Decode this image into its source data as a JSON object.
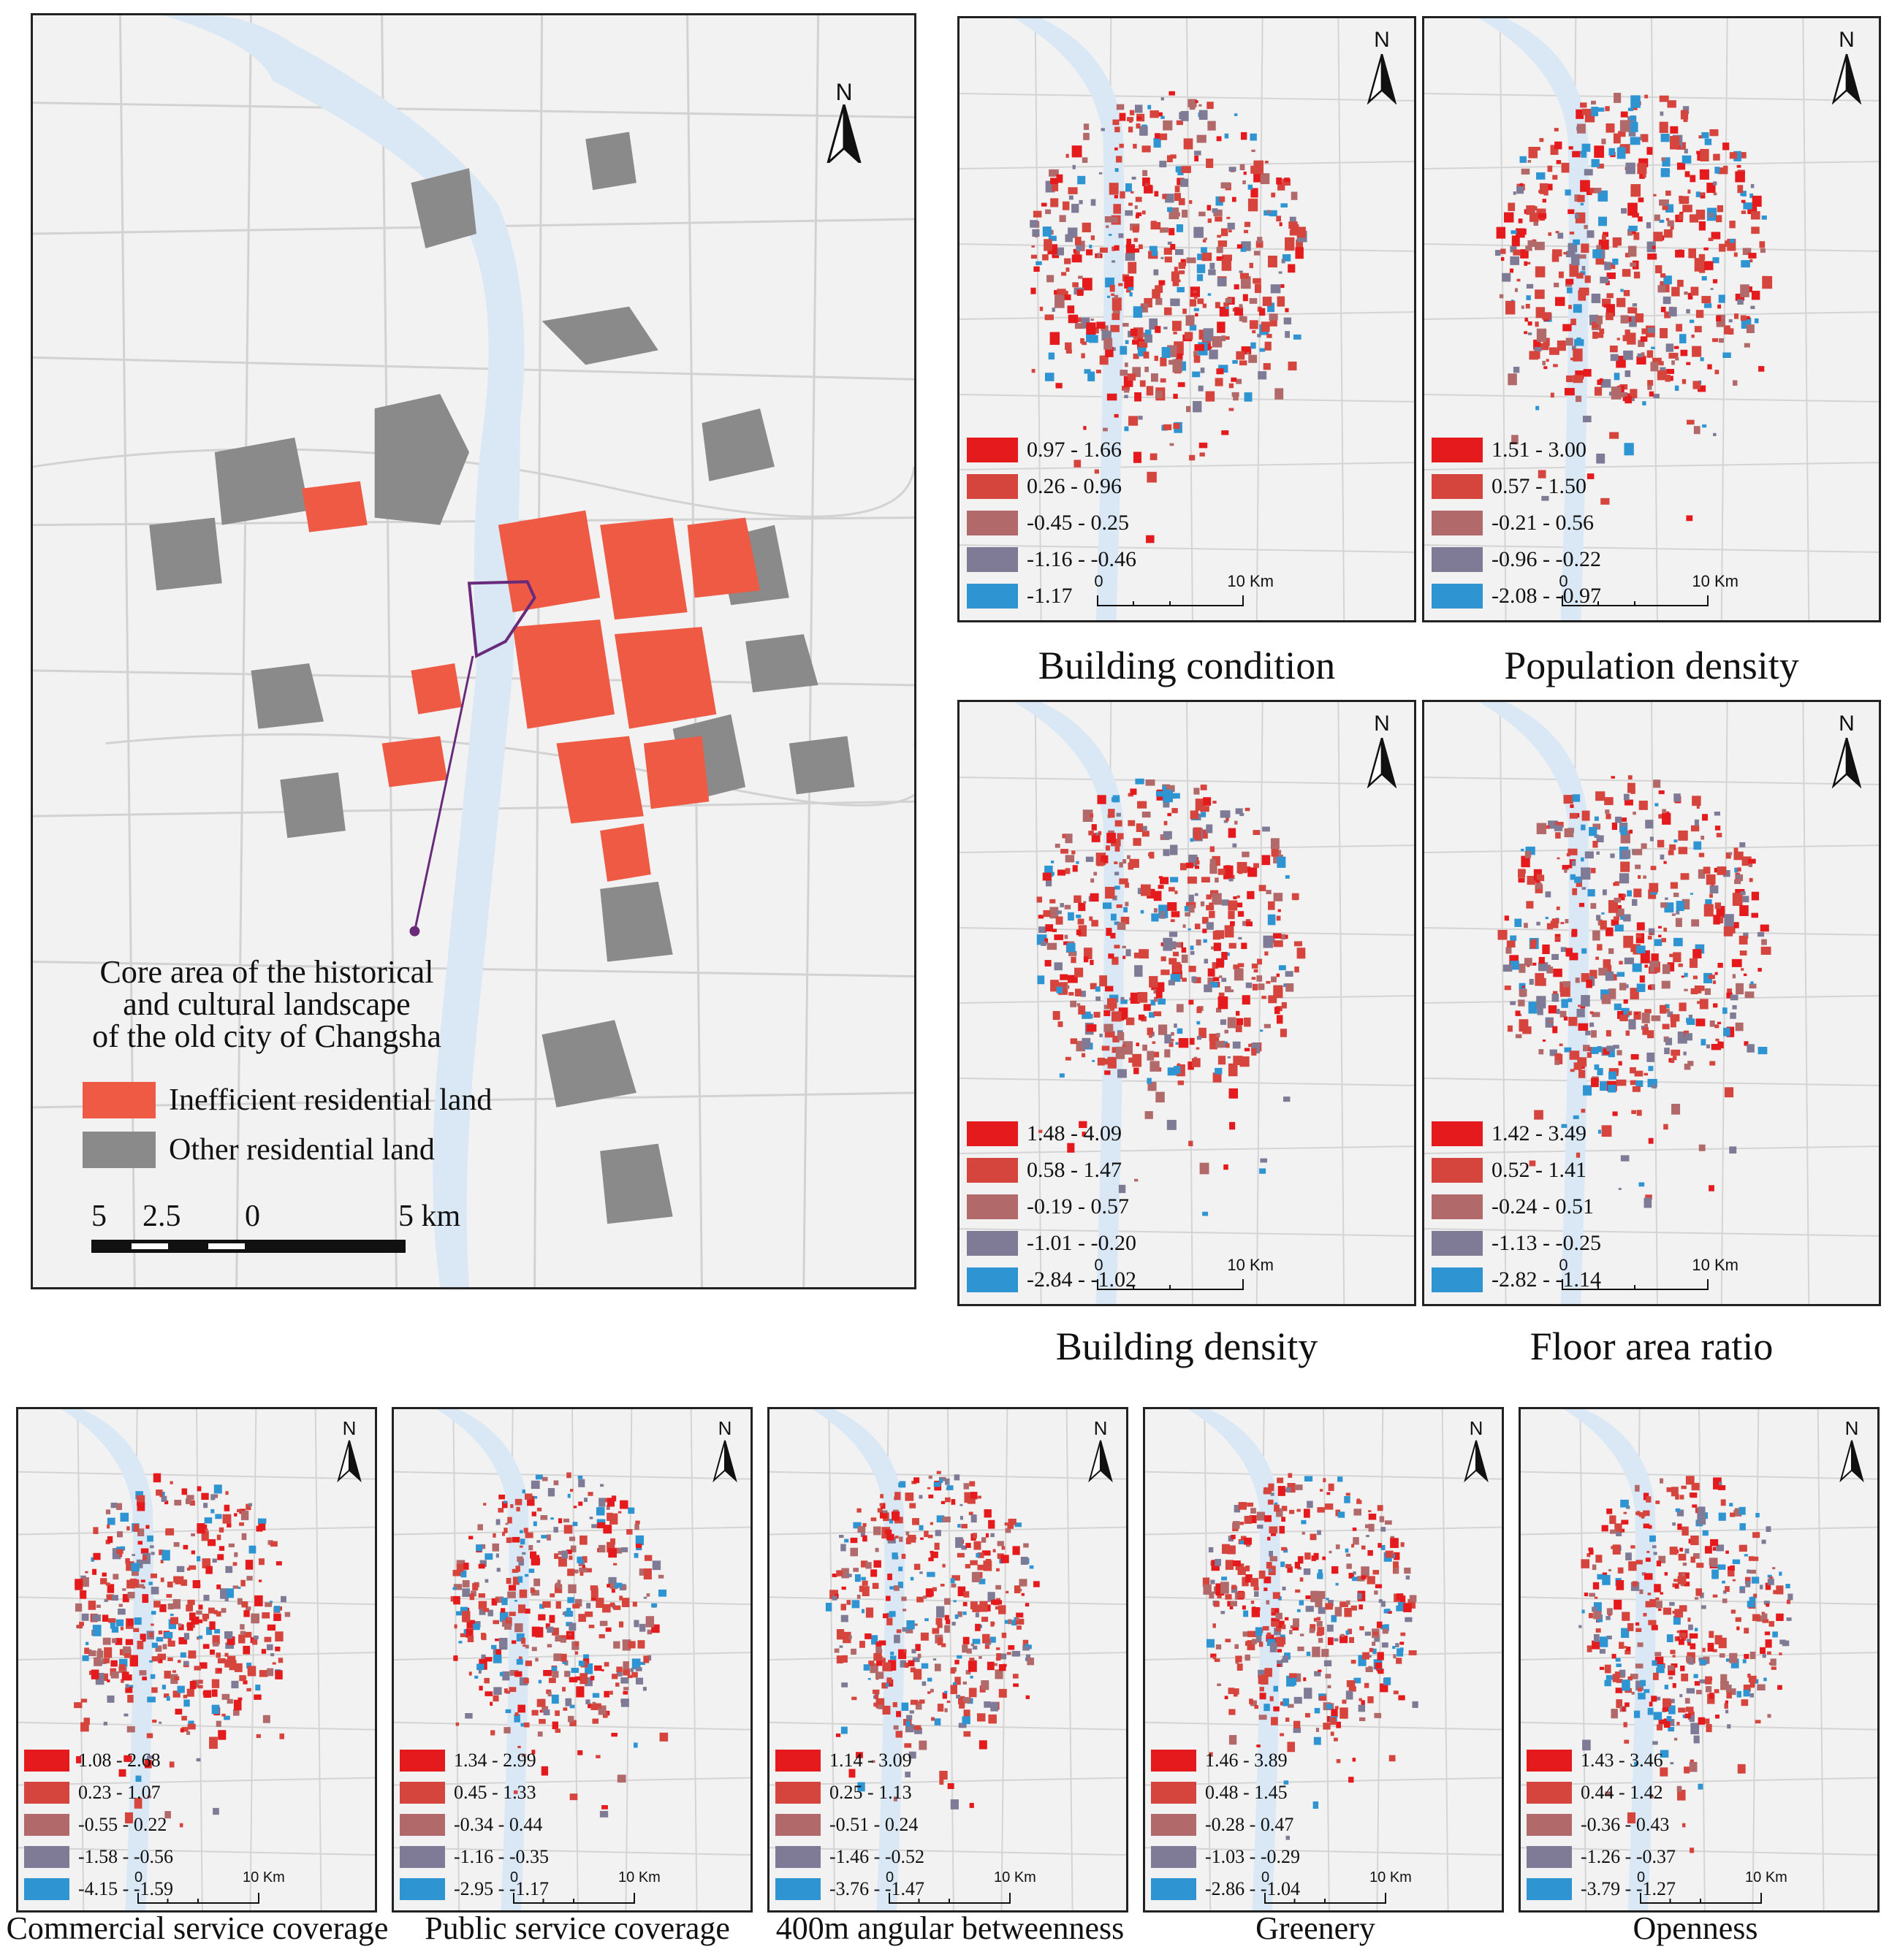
{
  "main_map": {
    "annotation": {
      "line1": "Core area of the historical",
      "line2": "and cultural landscape",
      "line3": "of the old city of Changsha"
    },
    "legend": [
      {
        "label": "Inefficient residential land",
        "color": "#ef5a45"
      },
      {
        "label": "Other residential land",
        "color": "#8a8a8a"
      }
    ],
    "scale": {
      "labels": [
        "5",
        "2.5",
        "0",
        "5 km"
      ]
    },
    "north": "N"
  },
  "small_maps": [
    {
      "title": "Building condition",
      "north": "N",
      "legend": [
        "0.97 - 1.66",
        "0.26 - 0.96",
        "-0.45 - 0.25",
        "-1.16 - -0.46",
        "-1.17"
      ],
      "scale": {
        "start": "0",
        "end": "10 Km"
      }
    },
    {
      "title": "Population density",
      "north": "N",
      "legend": [
        "1.51 - 3.00",
        "0.57 - 1.50",
        "-0.21 - 0.56",
        "-0.96 - -0.22",
        "-2.08 - -0.97"
      ],
      "scale": {
        "start": "0",
        "end": "10 Km"
      }
    },
    {
      "title": "Building density",
      "north": "N",
      "legend": [
        "1.48 - 4.09",
        "0.58 - 1.47",
        "-0.19 - 0.57",
        "-1.01 - -0.20",
        "-2.84 - -1.02"
      ],
      "scale": {
        "start": "0",
        "end": "10 Km"
      }
    },
    {
      "title": "Floor area ratio",
      "north": "N",
      "legend": [
        "1.42 - 3.49",
        "0.52 - 1.41",
        "-0.24 - 0.51",
        "-1.13 - -0.25",
        "-2.82 - -1.14"
      ],
      "scale": {
        "start": "0",
        "end": "10 Km"
      }
    },
    {
      "title": "Commercial service coverage",
      "north": "N",
      "legend": [
        "1.08 - 2.68",
        "0.23 - 1.07",
        "-0.55 - 0.22",
        "-1.58 - -0.56",
        "-4.15 - -1.59"
      ],
      "scale": {
        "start": "0",
        "end": "10 Km"
      }
    },
    {
      "title": "Public service coverage",
      "north": "N",
      "legend": [
        "1.34 - 2.99",
        "0.45 - 1.33",
        "-0.34 - 0.44",
        "-1.16 - -0.35",
        "-2.95 - -1.17"
      ],
      "scale": {
        "start": "0",
        "end": "10 Km"
      }
    },
    {
      "title": "400m angular betweenness",
      "north": "N",
      "legend": [
        "1.14 - 3.09",
        "0.25 - 1.13",
        "-0.51 - 0.24",
        "-1.46 - -0.52",
        "-3.76 - -1.47"
      ],
      "scale": {
        "start": "0",
        "end": "10 Km"
      }
    },
    {
      "title": "Greenery",
      "north": "N",
      "legend": [
        "1.46 - 3.89",
        "0.48 - 1.45",
        "-0.28 - 0.47",
        "-1.03 - -0.29",
        "-2.86 - -1.04"
      ],
      "scale": {
        "start": "0",
        "end": "10 Km"
      }
    },
    {
      "title": "Openness",
      "north": "N",
      "legend": [
        "1.43 - 3.46",
        "0.44 - 1.42",
        "-0.36 - 0.43",
        "-1.26 - -0.37",
        "-3.79 - -1.27"
      ],
      "scale": {
        "start": "0",
        "end": "10 Km"
      }
    }
  ],
  "class_colors": [
    "#e41a1c",
    "#d6453d",
    "#b2696a",
    "#7f7b96",
    "#2f95d2"
  ],
  "base_colors": {
    "background": "#f2f2f2",
    "water": "#d9e8f4",
    "roads": "#cfcfcf"
  }
}
